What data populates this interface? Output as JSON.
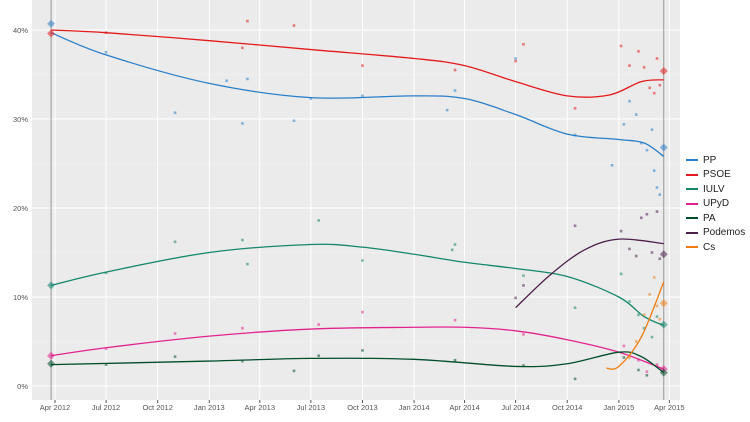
{
  "chart_data": {
    "type": "line",
    "title": "",
    "xlabel": "",
    "ylabel": "",
    "ylim": [
      0,
      43
    ],
    "xlim": [
      "2012-02-20",
      "2015-04-20"
    ],
    "grid": true,
    "legend_placement": "right",
    "x_ticks": [
      [
        "2012-04-01",
        "Apr 2012"
      ],
      [
        "2012-07-01",
        "Jul 2012"
      ],
      [
        "2012-10-01",
        "Oct 2012"
      ],
      [
        "2013-01-01",
        "Jan 2013"
      ],
      [
        "2013-04-01",
        "Apr 2013"
      ],
      [
        "2013-07-01",
        "Jul 2013"
      ],
      [
        "2013-10-01",
        "Oct 2013"
      ],
      [
        "2014-01-01",
        "Jan 2014"
      ],
      [
        "2014-04-01",
        "Apr 2014"
      ],
      [
        "2014-07-01",
        "Jul 2014"
      ],
      [
        "2014-10-01",
        "Oct 2014"
      ],
      [
        "2015-01-01",
        "Jan 2015"
      ],
      [
        "2015-04-01",
        "Apr 2015"
      ]
    ],
    "y_ticks": [
      [
        0,
        "0%"
      ],
      [
        10,
        "10%"
      ],
      [
        20,
        "20%"
      ],
      [
        30,
        "30%"
      ],
      [
        40,
        "40%"
      ]
    ],
    "election_dates": [
      "2012-03-25",
      "2015-03-22"
    ],
    "series": [
      {
        "name": "PP",
        "color": "#2a7fc9",
        "trend": [
          [
            "2012-03-25",
            39.7
          ],
          [
            "2012-07-01",
            37.2
          ],
          [
            "2013-01-01",
            34.0
          ],
          [
            "2013-07-01",
            32.4
          ],
          [
            "2014-01-01",
            32.6
          ],
          [
            "2014-04-01",
            32.3
          ],
          [
            "2014-07-01",
            30.5
          ],
          [
            "2014-10-01",
            28.3
          ],
          [
            "2015-01-01",
            27.7
          ],
          [
            "2015-02-15",
            27.3
          ],
          [
            "2015-03-22",
            25.8
          ]
        ],
        "results": [
          [
            "2012-03-25",
            40.7
          ],
          [
            "2015-03-22",
            26.8
          ]
        ],
        "polls": [
          [
            "2012-07-01",
            37.5
          ],
          [
            "2012-11-01",
            30.7
          ],
          [
            "2013-02-01",
            34.3
          ],
          [
            "2013-03-01",
            29.5
          ],
          [
            "2013-03-10",
            34.5
          ],
          [
            "2013-06-01",
            29.8
          ],
          [
            "2013-07-01",
            32.3
          ],
          [
            "2013-10-01",
            32.6
          ],
          [
            "2014-03-01",
            31.0
          ],
          [
            "2014-03-15",
            33.2
          ],
          [
            "2014-07-01",
            36.8
          ],
          [
            "2014-10-15",
            28.2
          ],
          [
            "2014-12-20",
            24.8
          ],
          [
            "2015-01-10",
            29.4
          ],
          [
            "2015-01-20",
            32.0
          ],
          [
            "2015-02-01",
            30.5
          ],
          [
            "2015-02-10",
            27.3
          ],
          [
            "2015-02-20",
            26.5
          ],
          [
            "2015-03-01",
            28.8
          ],
          [
            "2015-03-05",
            24.2
          ],
          [
            "2015-03-10",
            22.3
          ],
          [
            "2015-03-15",
            21.5
          ]
        ]
      },
      {
        "name": "PSOE",
        "color": "#e41a1c",
        "trend": [
          [
            "2012-03-25",
            40.0
          ],
          [
            "2012-07-01",
            39.7
          ],
          [
            "2013-01-01",
            38.8
          ],
          [
            "2013-07-01",
            37.8
          ],
          [
            "2014-01-01",
            36.8
          ],
          [
            "2014-04-01",
            36.0
          ],
          [
            "2014-07-01",
            34.2
          ],
          [
            "2014-10-01",
            32.6
          ],
          [
            "2014-12-15",
            32.7
          ],
          [
            "2015-02-10",
            34.2
          ],
          [
            "2015-03-22",
            34.4
          ]
        ],
        "results": [
          [
            "2012-03-25",
            39.6
          ],
          [
            "2015-03-22",
            35.4
          ]
        ],
        "polls": [
          [
            "2012-07-01",
            39.7
          ],
          [
            "2013-03-01",
            38.0
          ],
          [
            "2013-03-10",
            41.0
          ],
          [
            "2013-06-01",
            40.5
          ],
          [
            "2013-10-01",
            36.0
          ],
          [
            "2014-03-15",
            35.5
          ],
          [
            "2014-07-01",
            36.5
          ],
          [
            "2014-07-15",
            38.4
          ],
          [
            "2014-10-15",
            31.2
          ],
          [
            "2015-01-05",
            38.2
          ],
          [
            "2015-01-20",
            36.0
          ],
          [
            "2015-02-05",
            37.6
          ],
          [
            "2015-02-15",
            35.8
          ],
          [
            "2015-02-25",
            33.5
          ],
          [
            "2015-03-05",
            32.9
          ],
          [
            "2015-03-10",
            36.8
          ],
          [
            "2015-03-15",
            33.8
          ]
        ]
      },
      {
        "name": "IULV",
        "color": "#14876a",
        "trend": [
          [
            "2012-03-25",
            11.3
          ],
          [
            "2012-07-01",
            12.8
          ],
          [
            "2013-01-01",
            15.0
          ],
          [
            "2013-07-01",
            15.9
          ],
          [
            "2013-10-01",
            15.6
          ],
          [
            "2014-01-01",
            14.8
          ],
          [
            "2014-04-01",
            13.9
          ],
          [
            "2014-07-01",
            13.2
          ],
          [
            "2014-10-01",
            12.3
          ],
          [
            "2015-01-01",
            10.0
          ],
          [
            "2015-02-15",
            7.8
          ],
          [
            "2015-03-22",
            6.8
          ]
        ],
        "results": [
          [
            "2012-03-25",
            11.3
          ],
          [
            "2015-03-22",
            6.9
          ]
        ],
        "polls": [
          [
            "2012-07-01",
            12.7
          ],
          [
            "2012-11-01",
            16.2
          ],
          [
            "2013-03-01",
            16.4
          ],
          [
            "2013-03-10",
            13.7
          ],
          [
            "2013-07-15",
            18.6
          ],
          [
            "2013-10-01",
            14.1
          ],
          [
            "2014-03-10",
            15.3
          ],
          [
            "2014-03-15",
            15.9
          ],
          [
            "2014-07-15",
            12.4
          ],
          [
            "2014-10-15",
            8.8
          ],
          [
            "2015-01-05",
            12.6
          ],
          [
            "2015-01-20",
            9.5
          ],
          [
            "2015-02-05",
            8.0
          ],
          [
            "2015-02-15",
            6.5
          ],
          [
            "2015-03-01",
            5.5
          ],
          [
            "2015-03-10",
            7.8
          ]
        ]
      },
      {
        "name": "UPyD",
        "color": "#e3238d",
        "trend": [
          [
            "2012-03-25",
            3.4
          ],
          [
            "2012-07-01",
            4.3
          ],
          [
            "2013-01-01",
            5.6
          ],
          [
            "2013-07-01",
            6.4
          ],
          [
            "2014-01-01",
            6.6
          ],
          [
            "2014-04-01",
            6.6
          ],
          [
            "2014-07-01",
            6.2
          ],
          [
            "2014-10-01",
            5.2
          ],
          [
            "2015-01-01",
            3.8
          ],
          [
            "2015-03-22",
            1.9
          ]
        ],
        "results": [
          [
            "2012-03-25",
            3.4
          ],
          [
            "2015-03-22",
            1.9
          ]
        ],
        "polls": [
          [
            "2012-07-01",
            4.2
          ],
          [
            "2012-11-01",
            5.9
          ],
          [
            "2013-03-01",
            6.5
          ],
          [
            "2013-07-15",
            6.9
          ],
          [
            "2013-10-01",
            8.3
          ],
          [
            "2014-03-15",
            7.4
          ],
          [
            "2014-07-15",
            5.8
          ],
          [
            "2015-01-10",
            4.5
          ],
          [
            "2015-02-05",
            2.9
          ],
          [
            "2015-02-20",
            1.6
          ],
          [
            "2015-03-10",
            2.4
          ]
        ]
      },
      {
        "name": "PA",
        "color": "#004d2c",
        "trend": [
          [
            "2012-03-25",
            2.4
          ],
          [
            "2013-01-01",
            2.8
          ],
          [
            "2013-07-01",
            3.1
          ],
          [
            "2014-01-01",
            3.0
          ],
          [
            "2014-07-01",
            2.2
          ],
          [
            "2014-10-01",
            2.5
          ],
          [
            "2015-01-01",
            3.8
          ],
          [
            "2015-02-10",
            3.3
          ],
          [
            "2015-03-22",
            1.5
          ]
        ],
        "results": [
          [
            "2012-03-25",
            2.5
          ],
          [
            "2015-03-22",
            1.5
          ]
        ],
        "polls": [
          [
            "2012-07-01",
            2.4
          ],
          [
            "2012-11-01",
            3.3
          ],
          [
            "2013-03-01",
            2.8
          ],
          [
            "2013-06-01",
            1.7
          ],
          [
            "2013-07-15",
            3.4
          ],
          [
            "2013-10-01",
            4.0
          ],
          [
            "2014-03-15",
            2.9
          ],
          [
            "2014-07-15",
            2.3
          ],
          [
            "2014-10-15",
            0.8
          ],
          [
            "2015-01-10",
            3.2
          ],
          [
            "2015-02-05",
            1.8
          ],
          [
            "2015-02-20",
            1.2
          ]
        ]
      },
      {
        "name": "Podemos",
        "color": "#4b1f48",
        "trend": [
          [
            "2014-07-01",
            8.8
          ],
          [
            "2014-09-01",
            12.5
          ],
          [
            "2014-11-01",
            15.3
          ],
          [
            "2015-01-01",
            16.5
          ],
          [
            "2015-03-22",
            16.0
          ]
        ],
        "results": [
          [
            "2015-03-22",
            14.8
          ]
        ],
        "polls": [
          [
            "2014-07-01",
            9.9
          ],
          [
            "2014-07-15",
            11.3
          ],
          [
            "2014-10-15",
            18.0
          ],
          [
            "2015-01-05",
            17.4
          ],
          [
            "2015-01-20",
            15.4
          ],
          [
            "2015-02-01",
            14.6
          ],
          [
            "2015-02-10",
            18.9
          ],
          [
            "2015-02-20",
            19.3
          ],
          [
            "2015-03-01",
            15.0
          ],
          [
            "2015-03-10",
            19.6
          ],
          [
            "2015-03-15",
            14.3
          ]
        ]
      },
      {
        "name": "Cs",
        "color": "#f07d13",
        "trend": [
          [
            "2014-12-10",
            2.0
          ],
          [
            "2015-01-01",
            2.2
          ],
          [
            "2015-02-10",
            5.5
          ],
          [
            "2015-03-22",
            11.7
          ]
        ],
        "results": [
          [
            "2015-03-22",
            9.3
          ]
        ],
        "polls": [
          [
            "2015-01-20",
            3.2
          ],
          [
            "2015-02-01",
            5.0
          ],
          [
            "2015-02-15",
            8.0
          ],
          [
            "2015-02-25",
            10.3
          ],
          [
            "2015-03-05",
            12.2
          ],
          [
            "2015-03-10",
            9.0
          ],
          [
            "2015-03-15",
            7.5
          ]
        ]
      }
    ]
  }
}
